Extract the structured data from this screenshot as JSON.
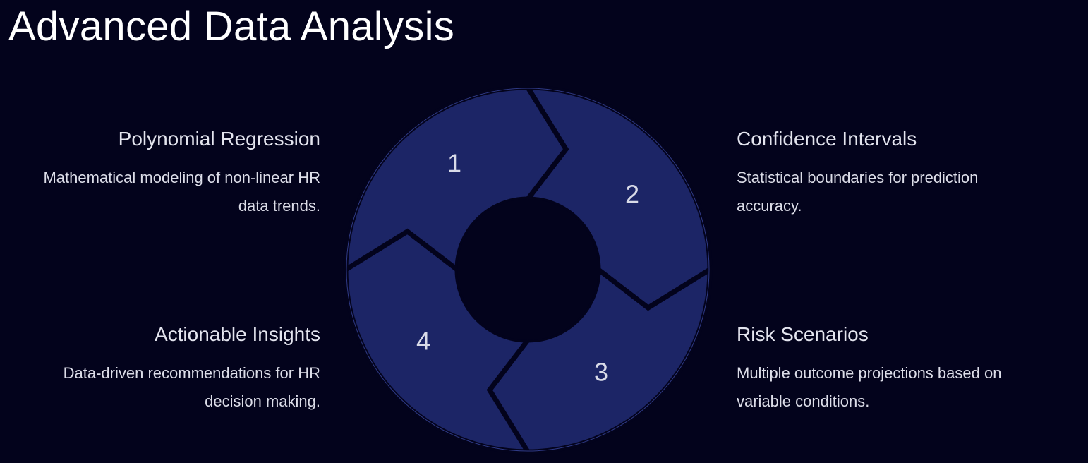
{
  "title": "Advanced Data Analysis",
  "colors": {
    "background": "#03031c",
    "segment_fill": "#1c2566",
    "segment_stroke": "#2f3a86",
    "gap": "#03031c",
    "text": "#dcdde8"
  },
  "steps": [
    {
      "number": "1",
      "title": "Polynomial Regression",
      "description": "Mathematical modeling of non-linear HR data trends."
    },
    {
      "number": "2",
      "title": "Confidence Intervals",
      "description": "Statistical boundaries for prediction accuracy."
    },
    {
      "number": "3",
      "title": "Risk Scenarios",
      "description": "Multiple outcome projections based on variable conditions."
    },
    {
      "number": "4",
      "title": "Actionable Insights",
      "description": "Data-driven recommendations for HR decision making."
    }
  ]
}
